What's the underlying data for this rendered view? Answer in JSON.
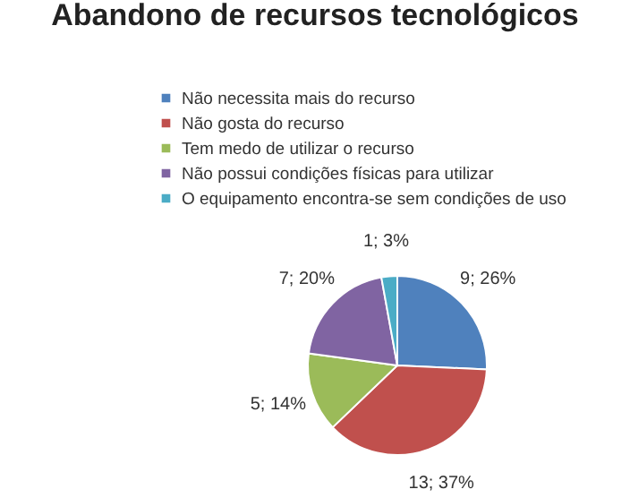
{
  "chart_data": {
    "type": "pie",
    "title": "Abandono de recursos tecnológicos",
    "categories": [
      "Não necessita mais do recurso",
      "Não gosta do recurso",
      "Tem medo de utilizar o recurso",
      "Não possui condições físicas para utilizar",
      "O equipamento encontra-se sem condições de uso"
    ],
    "values": [
      9,
      13,
      5,
      7,
      1
    ],
    "colors": [
      "#4f81bd",
      "#c0504d",
      "#9bbb59",
      "#8064a2",
      "#4bacc6"
    ],
    "value_labels": [
      "9; 26%",
      "13; 37%",
      "5; 14%",
      "7; 20%",
      "1; 3%"
    ],
    "legend": "top"
  }
}
